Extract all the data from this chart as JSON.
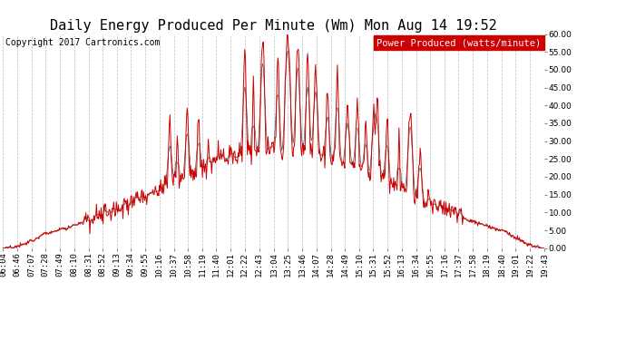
{
  "title": "Daily Energy Produced Per Minute (Wm) Mon Aug 14 19:52",
  "copyright_text": "Copyright 2017 Cartronics.com",
  "legend_label": "Power Produced (watts/minute)",
  "ylim": [
    0.0,
    60.0
  ],
  "yticks": [
    0,
    5,
    10,
    15,
    20,
    25,
    30,
    35,
    40,
    45,
    50,
    55,
    60
  ],
  "line_color_red": "#cc0000",
  "line_color_dark": "#555555",
  "bg_color": "#ffffff",
  "grid_color": "#bbbbbb",
  "title_fontsize": 11,
  "tick_fontsize": 6.5,
  "copyright_fontsize": 7,
  "legend_fontsize": 7.5,
  "x_tick_labels": [
    "06:04",
    "06:46",
    "07:07",
    "07:28",
    "07:49",
    "08:10",
    "08:31",
    "08:52",
    "09:13",
    "09:34",
    "09:55",
    "10:16",
    "10:37",
    "10:58",
    "11:19",
    "11:40",
    "12:01",
    "12:22",
    "12:43",
    "13:04",
    "13:25",
    "13:46",
    "14:07",
    "14:28",
    "14:49",
    "15:10",
    "15:31",
    "15:52",
    "16:13",
    "16:34",
    "16:55",
    "17:16",
    "17:37",
    "17:58",
    "18:19",
    "18:40",
    "19:01",
    "19:22",
    "19:43"
  ]
}
